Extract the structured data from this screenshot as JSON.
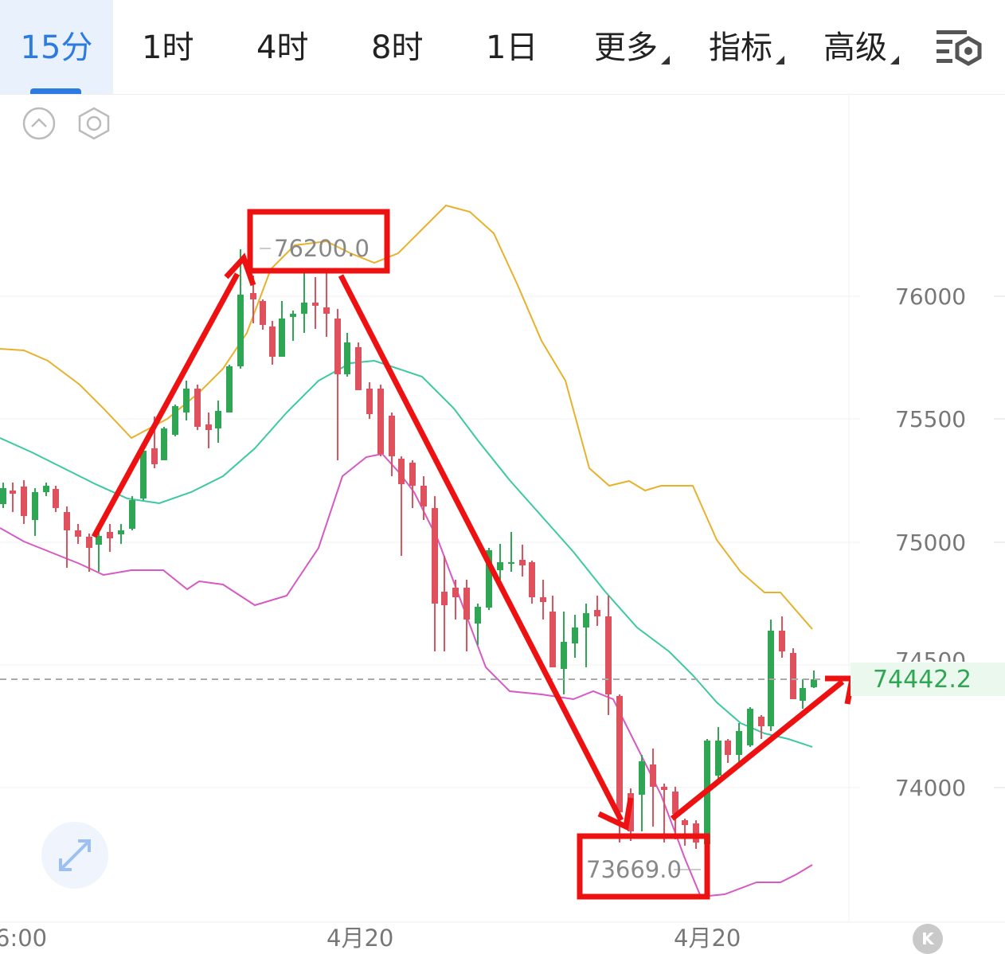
{
  "tabs": [
    {
      "label": "15分",
      "active": true
    },
    {
      "label": "1时"
    },
    {
      "label": "4时"
    },
    {
      "label": "8时"
    },
    {
      "label": "1日"
    },
    {
      "label": "更多",
      "dropdown": true
    },
    {
      "label": "指标",
      "dropdown": true
    },
    {
      "label": "高级",
      "dropdown": true
    }
  ],
  "colors": {
    "accent": "#2b7be0",
    "up": "#2fa653",
    "down": "#e0515e",
    "upper_band": "#e8b12b",
    "middle_band": "#3cc9a2",
    "lower_band": "#d659c4",
    "annotation": "#ee1111"
  },
  "price_axis": {
    "ticks": [
      "76000",
      "75500",
      "75000",
      "74500",
      "74000"
    ]
  },
  "time_axis": {
    "ticks": [
      "6:00",
      "4月20",
      "4月20"
    ]
  },
  "current_price": "74442.2",
  "annotations": {
    "high": "76200.0",
    "low": "73669.0"
  },
  "icons": {
    "collapse": "chevron-up-circle-icon",
    "settings": "hexagon-gear-icon",
    "expand": "expand-arrows-icon",
    "k_logo": "k-logo-icon",
    "chart_settings": "chart-settings-icon"
  },
  "k_badge": "K"
}
